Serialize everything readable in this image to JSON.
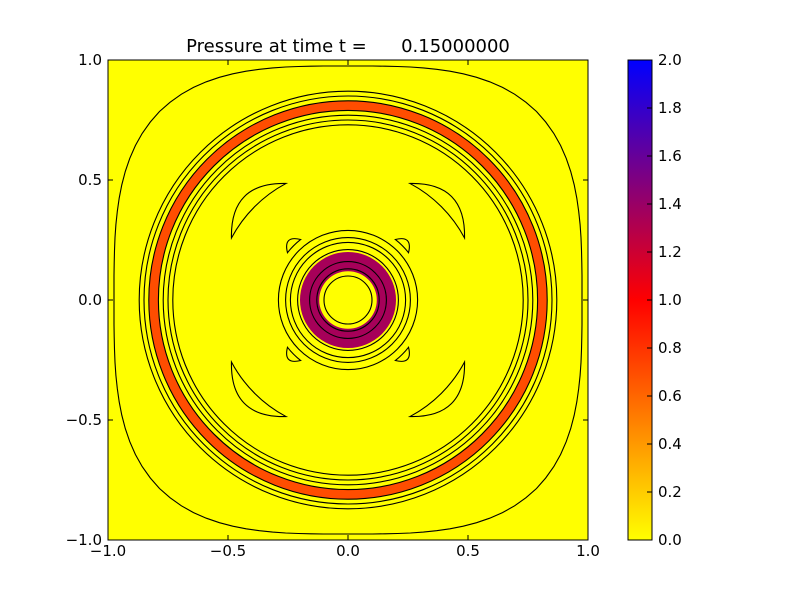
{
  "chart_data": {
    "type": "heatmap",
    "title": "Pressure at time t =      0.15000000",
    "xlabel": "",
    "ylabel": "",
    "xlim": [
      -1.0,
      1.0
    ],
    "ylim": [
      -1.0,
      1.0
    ],
    "x_ticks": [
      -1.0,
      -0.5,
      0.0,
      0.5,
      1.0
    ],
    "x_tick_labels": [
      "−1.0",
      "−0.5",
      "0.0",
      "0.5",
      "1.0"
    ],
    "y_ticks": [
      1.0,
      0.5,
      0.0,
      -0.5,
      -1.0
    ],
    "y_tick_labels": [
      "1.0",
      "0.5",
      "0.0",
      "−0.5",
      "−1.0"
    ],
    "grid": false,
    "colorbar": {
      "vmin": 0.0,
      "vmax": 2.0,
      "ticks": [
        2.0,
        1.8,
        1.6,
        1.4,
        1.2,
        1.0,
        0.8,
        0.6,
        0.4,
        0.2,
        0.0
      ],
      "tick_labels": [
        "2.0",
        "1.8",
        "1.6",
        "1.4",
        "1.2",
        "1.0",
        "0.8",
        "0.6",
        "0.4",
        "0.2",
        "0.0"
      ],
      "colormap": [
        {
          "value": 0.0,
          "color": "#ffff00"
        },
        {
          "value": 1.0,
          "color": "#ff0000"
        },
        {
          "value": 2.0,
          "color": "#0000ff"
        }
      ]
    },
    "background_value": 0.0,
    "rings": [
      {
        "center": [
          0.0,
          0.0
        ],
        "inner_radius": 0.79,
        "outer_radius": 0.83,
        "value": 0.7
      },
      {
        "center": [
          0.0,
          0.0
        ],
        "inner_radius": 0.12,
        "outer_radius": 0.2,
        "value": 1.35
      }
    ],
    "contour_circles": [
      {
        "radius": 0.1
      },
      {
        "radius": 0.13
      },
      {
        "radius": 0.16
      },
      {
        "radius": 0.21
      },
      {
        "radius": 0.24
      },
      {
        "radius": 0.26
      },
      {
        "radius": 0.29
      },
      {
        "radius": 0.73
      },
      {
        "radius": 0.75
      },
      {
        "radius": 0.77
      },
      {
        "radius": 0.79
      },
      {
        "radius": 0.83
      },
      {
        "radius": 0.85
      },
      {
        "radius": 0.87
      }
    ],
    "outer_contour_radius": 0.99,
    "contour_arcs": [
      {
        "r_in": 0.55,
        "r_out": 0.61,
        "angle_from": 118,
        "angle_to": 152
      },
      {
        "r_in": 0.55,
        "r_out": 0.61,
        "angle_from": 28,
        "angle_to": 62
      },
      {
        "r_in": 0.55,
        "r_out": 0.61,
        "angle_from": 208,
        "angle_to": 242
      },
      {
        "r_in": 0.55,
        "r_out": 0.61,
        "angle_from": 298,
        "angle_to": 332
      },
      {
        "r_in": 0.32,
        "r_out": 0.35,
        "angle_from": 128,
        "angle_to": 142
      },
      {
        "r_in": 0.32,
        "r_out": 0.35,
        "angle_from": 38,
        "angle_to": 52
      },
      {
        "r_in": 0.32,
        "r_out": 0.35,
        "angle_from": 218,
        "angle_to": 232
      },
      {
        "r_in": 0.32,
        "r_out": 0.35,
        "angle_from": 308,
        "angle_to": 322
      }
    ]
  }
}
